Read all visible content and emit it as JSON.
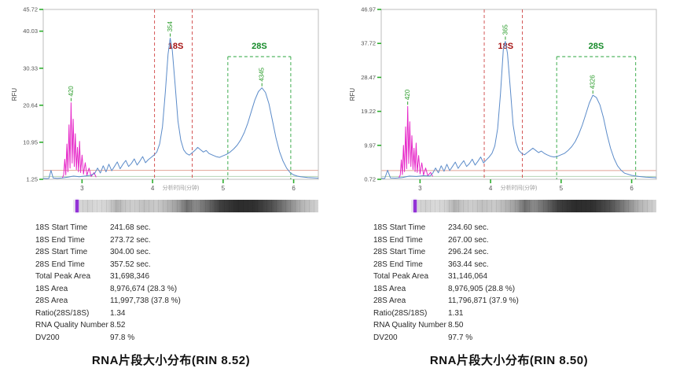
{
  "panels": [
    {
      "caption": "RNA片段大小分布(RIN 8.52)",
      "stats": [
        {
          "label": "18S Start Time",
          "value": "241.68 sec."
        },
        {
          "label": "18S End Time",
          "value": "273.72 sec."
        },
        {
          "label": "28S Start Time",
          "value": "304.00 sec."
        },
        {
          "label": "28S End Time",
          "value": "357.52 sec."
        },
        {
          "label": "Total Peak Area",
          "value": "31,698,346"
        },
        {
          "label": "18S Area",
          "value": "8,976,674 (28.3 %)"
        },
        {
          "label": "28S Area",
          "value": "11,997,738 (37.8 %)"
        },
        {
          "label": "Ratio(28S/18S)",
          "value": "1.34"
        },
        {
          "label": "RNA Quality Number",
          "value": "8.52"
        },
        {
          "label": "DV200",
          "value": "97.8 %"
        }
      ]
    },
    {
      "caption": "RNA片段大小分布(RIN 8.50)",
      "stats": [
        {
          "label": "18S Start Time",
          "value": "234.60 sec."
        },
        {
          "label": "18S End Time",
          "value": "267.00 sec."
        },
        {
          "label": "28S Start Time",
          "value": "296.24 sec."
        },
        {
          "label": "28S End Time",
          "value": "363.44 sec."
        },
        {
          "label": "Total Peak Area",
          "value": "31,146,064"
        },
        {
          "label": "18S Area",
          "value": "8,976,905 (28.8 %)"
        },
        {
          "label": "28S Area",
          "value": "11,796,871 (37.9 %)"
        },
        {
          "label": "Ratio(28S/18S)",
          "value": "1.31"
        },
        {
          "label": "RNA Quality Number",
          "value": "8.50"
        },
        {
          "label": "DV200",
          "value": "97.7 %"
        }
      ]
    }
  ],
  "chart_data": [
    {
      "type": "line",
      "title": "RNA片段大小分布(RIN 8.52)",
      "xlabel": "分析时间(分钟)",
      "ylabel": "RFU",
      "xlim": [
        2.45,
        6.35
      ],
      "ylim": [
        1.25,
        45.72
      ],
      "yticks": [
        "45.72",
        "40.03",
        "30.33",
        "20.64",
        "10.95",
        "1.25"
      ],
      "xticks": [
        "3",
        "4",
        "5",
        "6"
      ],
      "grid": false,
      "regions": {
        "r18s": {
          "label": "18S",
          "start_min": 4.028,
          "end_min": 4.562,
          "color": "#d04545",
          "text_color": "#a51212"
        },
        "r28s": {
          "label": "28S",
          "start_min": 5.067,
          "end_min": 5.959,
          "color": "#2aa43c",
          "text_color": "#148a28"
        }
      },
      "baselines": [
        {
          "y": 3.6,
          "color": "#cf6a55"
        },
        {
          "y": 2.0,
          "color": "#86b886"
        }
      ],
      "peak_labels": [
        {
          "text": "420",
          "x": 2.845,
          "peak_y": 21.3
        },
        {
          "text": "354",
          "x": 4.25,
          "peak_y": 38.2
        },
        {
          "text": "4345",
          "x": 5.55,
          "peak_y": 25.2
        }
      ],
      "series": [
        {
          "name": "lower-marker",
          "color": "#e627c8",
          "points": [
            [
              2.72,
              1.6
            ],
            [
              2.74,
              2.4
            ],
            [
              2.755,
              6.5
            ],
            [
              2.77,
              2.4
            ],
            [
              2.785,
              10.5
            ],
            [
              2.8,
              3.2
            ],
            [
              2.815,
              15.5
            ],
            [
              2.83,
              4.2
            ],
            [
              2.845,
              21.3
            ],
            [
              2.86,
              5.5
            ],
            [
              2.875,
              17.0
            ],
            [
              2.89,
              4.6
            ],
            [
              2.905,
              13.2
            ],
            [
              2.92,
              3.8
            ],
            [
              2.935,
              9.6
            ],
            [
              2.95,
              3.2
            ],
            [
              2.965,
              11.2
            ],
            [
              2.98,
              3.0
            ],
            [
              3.0,
              7.6
            ],
            [
              3.02,
              2.6
            ],
            [
              3.045,
              5.6
            ],
            [
              3.07,
              2.3
            ],
            [
              3.1,
              4.2
            ],
            [
              3.13,
              2.0
            ],
            [
              3.17,
              3.0
            ],
            [
              3.2,
              1.8
            ]
          ]
        },
        {
          "name": "rna-sample",
          "color": "#5b8bc9",
          "points": [
            [
              2.45,
              1.5
            ],
            [
              2.5,
              1.45
            ],
            [
              2.53,
              1.5
            ],
            [
              2.56,
              3.6
            ],
            [
              2.59,
              1.6
            ],
            [
              2.65,
              1.5
            ],
            [
              2.72,
              1.6
            ],
            [
              2.8,
              1.8
            ],
            [
              2.88,
              2.1
            ],
            [
              2.96,
              1.9
            ],
            [
              3.04,
              2.1
            ],
            [
              3.12,
              2.3
            ],
            [
              3.18,
              2.8
            ],
            [
              3.22,
              4.2
            ],
            [
              3.26,
              2.9
            ],
            [
              3.3,
              4.8
            ],
            [
              3.34,
              3.2
            ],
            [
              3.38,
              5.2
            ],
            [
              3.42,
              3.5
            ],
            [
              3.46,
              4.6
            ],
            [
              3.5,
              5.8
            ],
            [
              3.54,
              4.0
            ],
            [
              3.58,
              5.2
            ],
            [
              3.62,
              6.2
            ],
            [
              3.66,
              4.6
            ],
            [
              3.7,
              5.4
            ],
            [
              3.74,
              6.6
            ],
            [
              3.78,
              5.0
            ],
            [
              3.82,
              6.0
            ],
            [
              3.86,
              7.2
            ],
            [
              3.9,
              5.6
            ],
            [
              3.94,
              6.4
            ],
            [
              3.98,
              7.0
            ],
            [
              4.02,
              7.6
            ],
            [
              4.06,
              8.4
            ],
            [
              4.1,
              10.5
            ],
            [
              4.14,
              15.0
            ],
            [
              4.18,
              24.0
            ],
            [
              4.22,
              34.0
            ],
            [
              4.25,
              38.2
            ],
            [
              4.28,
              35.0
            ],
            [
              4.32,
              26.0
            ],
            [
              4.36,
              16.5
            ],
            [
              4.4,
              11.5
            ],
            [
              4.44,
              9.0
            ],
            [
              4.48,
              8.0
            ],
            [
              4.52,
              7.6
            ],
            [
              4.56,
              8.2
            ],
            [
              4.6,
              8.8
            ],
            [
              4.64,
              9.6
            ],
            [
              4.68,
              9.0
            ],
            [
              4.72,
              8.4
            ],
            [
              4.76,
              8.8
            ],
            [
              4.8,
              8.0
            ],
            [
              4.85,
              7.6
            ],
            [
              4.9,
              7.2
            ],
            [
              4.95,
              7.0
            ],
            [
              5.0,
              7.4
            ],
            [
              5.05,
              7.8
            ],
            [
              5.1,
              8.4
            ],
            [
              5.15,
              9.2
            ],
            [
              5.2,
              10.2
            ],
            [
              5.25,
              11.6
            ],
            [
              5.3,
              13.5
            ],
            [
              5.35,
              16.0
            ],
            [
              5.4,
              19.0
            ],
            [
              5.45,
              22.0
            ],
            [
              5.5,
              24.2
            ],
            [
              5.55,
              25.2
            ],
            [
              5.6,
              24.0
            ],
            [
              5.65,
              21.0
            ],
            [
              5.7,
              16.5
            ],
            [
              5.75,
              12.0
            ],
            [
              5.8,
              8.5
            ],
            [
              5.85,
              6.0
            ],
            [
              5.9,
              4.2
            ],
            [
              5.95,
              3.0
            ],
            [
              6.0,
              2.4
            ],
            [
              6.05,
              2.1
            ],
            [
              6.1,
              1.9
            ],
            [
              6.2,
              1.7
            ],
            [
              6.3,
              1.6
            ],
            [
              6.35,
              1.55
            ]
          ]
        }
      ]
    },
    {
      "type": "line",
      "title": "RNA片段大小分布(RIN 8.50)",
      "xlabel": "分析时间(分钟)",
      "ylabel": "RFU",
      "xlim": [
        2.45,
        6.35
      ],
      "ylim": [
        0.72,
        46.97
      ],
      "yticks": [
        "46.97",
        "37.72",
        "28.47",
        "19.22",
        "9.97",
        "0.72"
      ],
      "xticks": [
        "3",
        "4",
        "5",
        "6"
      ],
      "grid": false,
      "regions": {
        "r18s": {
          "label": "18S",
          "start_min": 3.91,
          "end_min": 4.45,
          "color": "#d04545",
          "text_color": "#a51212"
        },
        "r28s": {
          "label": "28S",
          "start_min": 4.937,
          "end_min": 6.057,
          "color": "#2aa43c",
          "text_color": "#148a28"
        }
      },
      "baselines": [
        {
          "y": 3.1,
          "color": "#cf6a55"
        },
        {
          "y": 1.5,
          "color": "#86b886"
        }
      ],
      "peak_labels": [
        {
          "text": "420",
          "x": 2.825,
          "peak_y": 20.6
        },
        {
          "text": "365",
          "x": 4.21,
          "peak_y": 38.3
        },
        {
          "text": "4326",
          "x": 5.45,
          "peak_y": 23.6
        }
      ],
      "series": [
        {
          "name": "lower-marker",
          "color": "#e627c8",
          "points": [
            [
              2.7,
              1.1
            ],
            [
              2.72,
              1.9
            ],
            [
              2.735,
              6.0
            ],
            [
              2.75,
              2.0
            ],
            [
              2.765,
              10.0
            ],
            [
              2.78,
              2.8
            ],
            [
              2.795,
              15.0
            ],
            [
              2.81,
              3.6
            ],
            [
              2.825,
              20.6
            ],
            [
              2.84,
              5.0
            ],
            [
              2.855,
              16.4
            ],
            [
              2.87,
              4.2
            ],
            [
              2.885,
              12.6
            ],
            [
              2.9,
              3.4
            ],
            [
              2.915,
              9.2
            ],
            [
              2.93,
              2.8
            ],
            [
              2.945,
              10.6
            ],
            [
              2.96,
              2.6
            ],
            [
              2.98,
              7.2
            ],
            [
              3.0,
              2.2
            ],
            [
              3.025,
              5.2
            ],
            [
              3.05,
              1.9
            ],
            [
              3.08,
              3.8
            ],
            [
              3.11,
              1.7
            ],
            [
              3.15,
              2.6
            ],
            [
              3.18,
              1.5
            ]
          ]
        },
        {
          "name": "rna-sample",
          "color": "#5b8bc9",
          "points": [
            [
              2.45,
              1.0
            ],
            [
              2.5,
              0.95
            ],
            [
              2.54,
              3.2
            ],
            [
              2.58,
              1.1
            ],
            [
              2.65,
              1.05
            ],
            [
              2.75,
              1.2
            ],
            [
              2.85,
              1.6
            ],
            [
              2.95,
              1.5
            ],
            [
              3.05,
              1.7
            ],
            [
              3.14,
              1.6
            ],
            [
              3.18,
              2.4
            ],
            [
              3.22,
              3.8
            ],
            [
              3.26,
              2.5
            ],
            [
              3.3,
              4.4
            ],
            [
              3.34,
              2.9
            ],
            [
              3.38,
              4.8
            ],
            [
              3.42,
              3.1
            ],
            [
              3.46,
              4.2
            ],
            [
              3.5,
              5.4
            ],
            [
              3.54,
              3.7
            ],
            [
              3.58,
              4.8
            ],
            [
              3.62,
              5.8
            ],
            [
              3.66,
              4.2
            ],
            [
              3.7,
              5.0
            ],
            [
              3.74,
              6.2
            ],
            [
              3.78,
              4.6
            ],
            [
              3.82,
              5.6
            ],
            [
              3.86,
              6.8
            ],
            [
              3.9,
              5.2
            ],
            [
              3.94,
              6.0
            ],
            [
              3.98,
              6.8
            ],
            [
              4.02,
              7.8
            ],
            [
              4.06,
              9.8
            ],
            [
              4.1,
              14.5
            ],
            [
              4.14,
              24.0
            ],
            [
              4.18,
              36.0
            ],
            [
              4.21,
              38.3
            ],
            [
              4.24,
              35.0
            ],
            [
              4.28,
              25.5
            ],
            [
              4.32,
              15.5
            ],
            [
              4.36,
              10.8
            ],
            [
              4.4,
              8.6
            ],
            [
              4.44,
              7.8
            ],
            [
              4.48,
              7.4
            ],
            [
              4.52,
              8.0
            ],
            [
              4.56,
              8.6
            ],
            [
              4.6,
              9.2
            ],
            [
              4.64,
              8.6
            ],
            [
              4.68,
              8.0
            ],
            [
              4.72,
              8.4
            ],
            [
              4.76,
              7.8
            ],
            [
              4.8,
              7.4
            ],
            [
              4.85,
              7.0
            ],
            [
              4.9,
              6.8
            ],
            [
              4.95,
              7.0
            ],
            [
              5.0,
              7.4
            ],
            [
              5.05,
              7.8
            ],
            [
              5.1,
              8.6
            ],
            [
              5.15,
              9.6
            ],
            [
              5.2,
              11.0
            ],
            [
              5.25,
              13.0
            ],
            [
              5.3,
              15.5
            ],
            [
              5.35,
              18.5
            ],
            [
              5.4,
              21.5
            ],
            [
              5.45,
              23.6
            ],
            [
              5.5,
              23.0
            ],
            [
              5.55,
              21.0
            ],
            [
              5.6,
              17.5
            ],
            [
              5.65,
              13.0
            ],
            [
              5.7,
              9.2
            ],
            [
              5.75,
              6.4
            ],
            [
              5.8,
              4.4
            ],
            [
              5.85,
              3.2
            ],
            [
              5.9,
              2.4
            ],
            [
              6.0,
              1.8
            ],
            [
              6.1,
              1.5
            ],
            [
              6.2,
              1.3
            ],
            [
              6.3,
              1.2
            ],
            [
              6.35,
              1.15
            ]
          ]
        }
      ]
    }
  ]
}
